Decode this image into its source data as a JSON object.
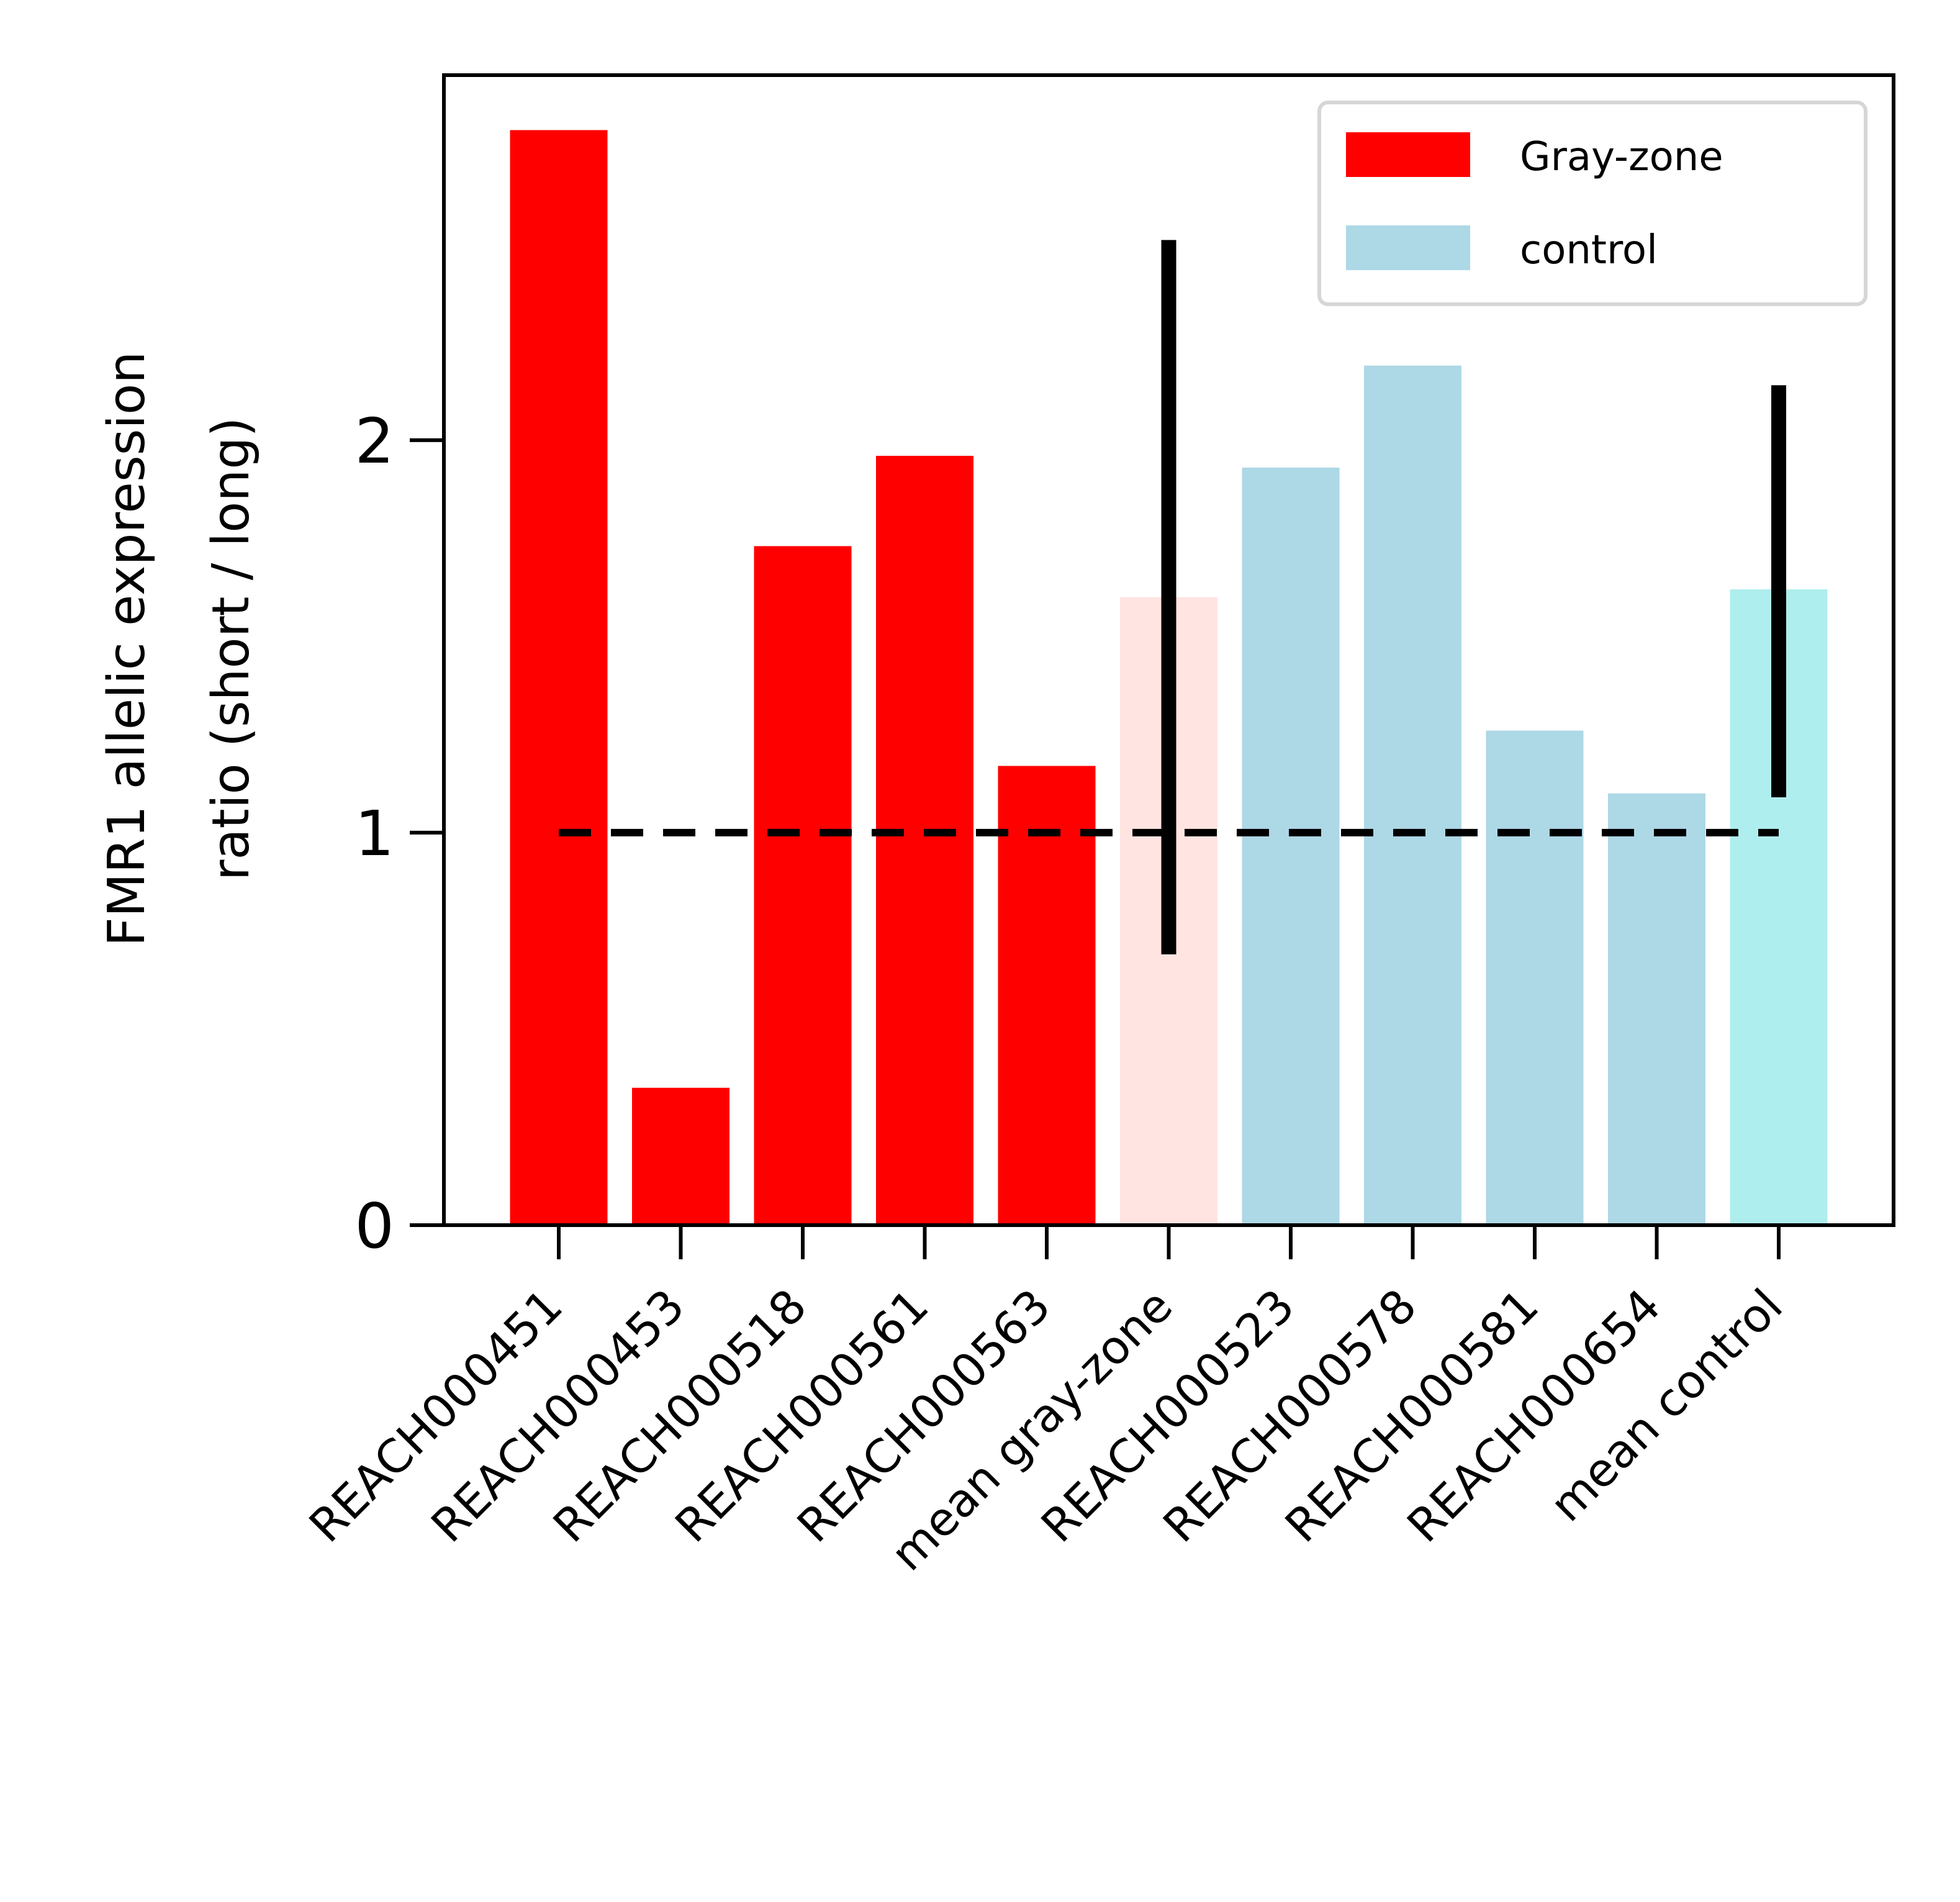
{
  "chart_data": {
    "type": "bar",
    "ylabel": [
      "FMR1 allelic expression",
      "ratio (short / long)"
    ],
    "xlabel": "",
    "ylim": [
      0,
      2.93
    ],
    "yticks": [
      0,
      1,
      2
    ],
    "categories": [
      "REACH000451",
      "REACH000453",
      "REACH000518",
      "REACH000561",
      "REACH000563",
      "mean gray-zone",
      "REACH000523",
      "REACH000578",
      "REACH000581",
      "REACH000654",
      "mean control"
    ],
    "values": [
      2.79,
      0.35,
      1.73,
      1.96,
      1.17,
      1.6,
      1.93,
      2.19,
      1.26,
      1.1,
      1.62
    ],
    "bar_colors": [
      "#ff0000",
      "#ff0000",
      "#ff0000",
      "#ff0000",
      "#ff0000",
      "#ffe4e1",
      "#add8e6",
      "#add8e6",
      "#add8e6",
      "#add8e6",
      "#afeeee"
    ],
    "error_bars": [
      {
        "category": "mean gray-zone",
        "low": 0.69,
        "high": 2.51
      },
      {
        "category": "mean control",
        "low": 1.09,
        "high": 2.14
      }
    ],
    "reference_line": {
      "y": 1,
      "style": "dashed",
      "color": "#000000"
    },
    "legend": {
      "placement": "top-right",
      "entries": [
        {
          "label": "Gray-zone",
          "color": "#ff0000"
        },
        {
          "label": "control",
          "color": "#add8e6"
        }
      ]
    },
    "grid": false
  }
}
